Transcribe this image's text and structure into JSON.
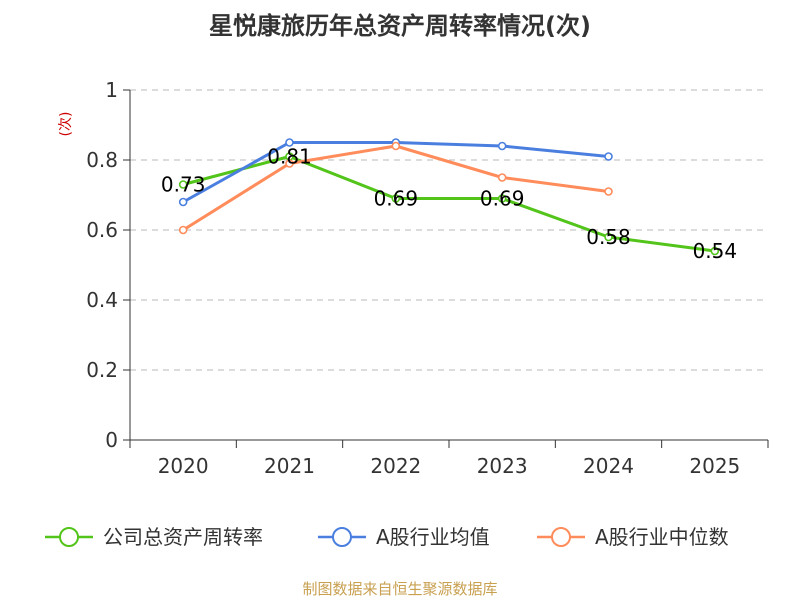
{
  "chart_data": {
    "type": "line",
    "title": "星悦康旅历年总资产周转率情况(次)",
    "ylabel": "(次)",
    "xlabel": "",
    "categories": [
      "2020",
      "2021",
      "2022",
      "2023",
      "2024",
      "2025"
    ],
    "ylim": [
      0,
      1
    ],
    "yticks": [
      0,
      0.2,
      0.4,
      0.6,
      0.8,
      1
    ],
    "ytick_labels": [
      "0",
      "0.2",
      "0.4",
      "0.6",
      "0.8",
      "1"
    ],
    "grid": true,
    "legend_position": "bottom",
    "series": [
      {
        "name": "公司总资产周转率",
        "color": "#52c41a",
        "values": [
          0.73,
          0.81,
          0.69,
          0.69,
          0.58,
          0.54
        ],
        "labels": [
          "0.73",
          "0.81",
          "0.69",
          "0.69",
          "0.58",
          "0.54"
        ]
      },
      {
        "name": "A股行业均值",
        "color": "#4a7fe0",
        "values": [
          0.68,
          0.85,
          0.85,
          0.84,
          0.81,
          null
        ]
      },
      {
        "name": "A股行业中位数",
        "color": "#ff8c5a",
        "values": [
          0.6,
          0.79,
          0.84,
          0.75,
          0.71,
          null
        ]
      }
    ],
    "source": "制图数据来自恒生聚源数据库"
  }
}
